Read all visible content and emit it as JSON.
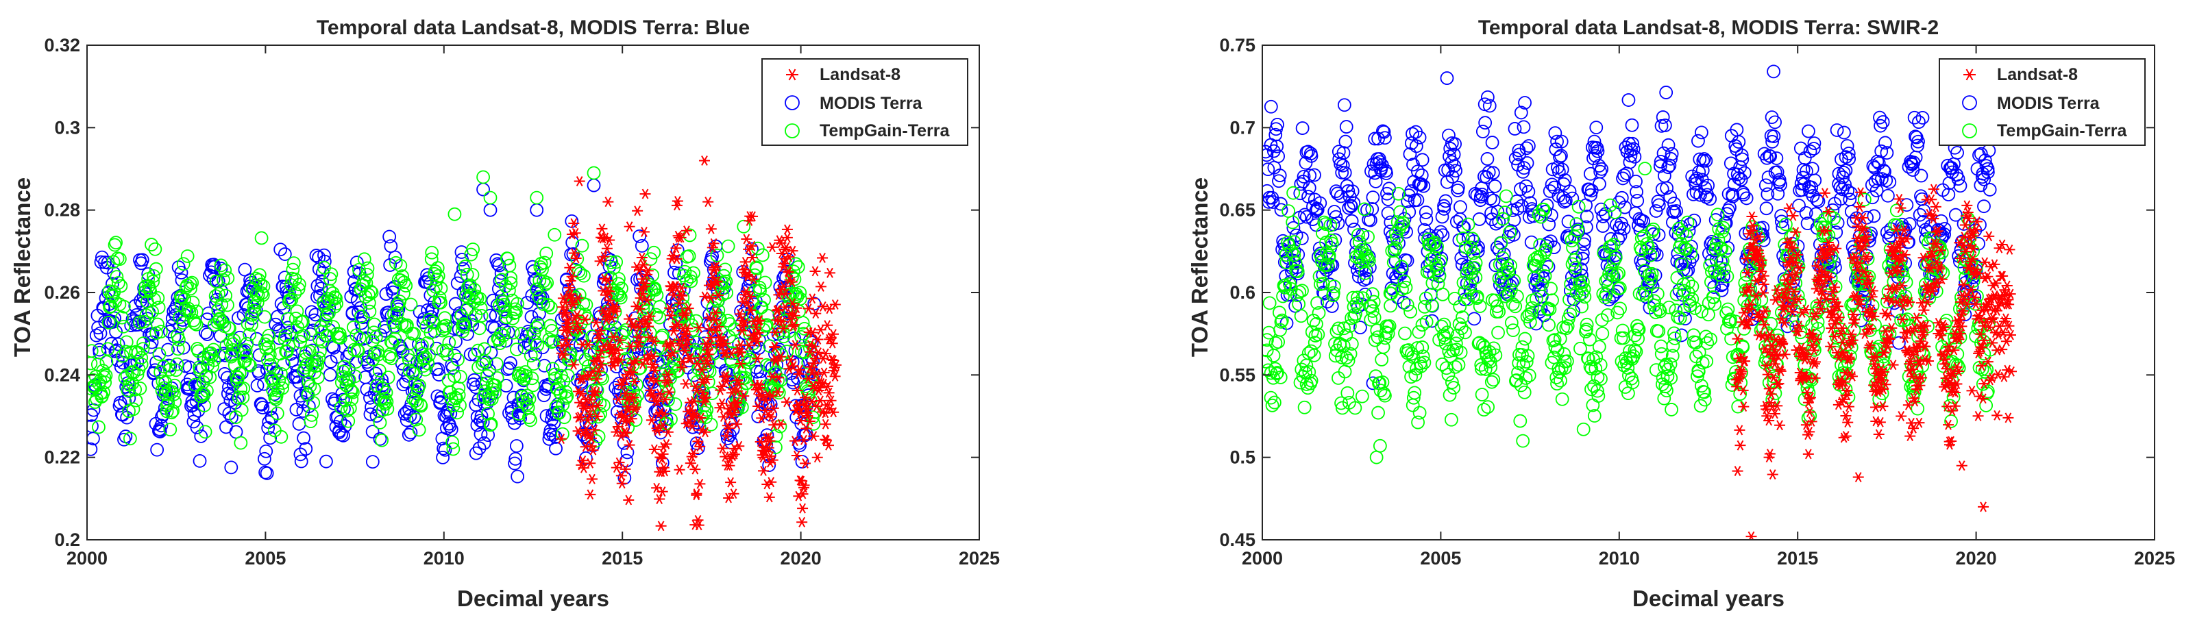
{
  "chart_data": [
    {
      "type": "scatter",
      "title": "Temporal data Landsat-8, MODIS Terra: Blue",
      "xlabel": "Decimal years",
      "ylabel": "TOA Reflectance",
      "xlim": [
        2000,
        2025
      ],
      "ylim": [
        0.2,
        0.32
      ],
      "xticks": [
        2000,
        2005,
        2010,
        2015,
        2020,
        2025
      ],
      "xtick_labels": [
        "2000",
        "2005",
        "2010",
        "2015",
        "2020",
        "2025"
      ],
      "yticks": [
        0.2,
        0.22,
        0.24,
        0.26,
        0.28,
        0.3,
        0.32
      ],
      "ytick_labels": [
        "0.2",
        "0.22",
        "0.24",
        "0.26",
        "0.28",
        "0.3",
        "0.32"
      ],
      "grid": false,
      "legend_position": "top-right",
      "series": [
        {
          "name": "Landsat-8",
          "marker": "asterisk",
          "color": "#ff0000",
          "x_range": [
            2013.3,
            2021.0
          ],
          "low": 0.224,
          "high": 0.262,
          "spread": 0.01,
          "outliers": [
            [
              2013.8,
              0.287
            ],
            [
              2014.1,
              0.211
            ],
            [
              2014.6,
              0.282
            ],
            [
              2015.2,
              0.276
            ],
            [
              2016.8,
              0.275
            ],
            [
              2017.3,
              0.292
            ],
            [
              2017.4,
              0.282
            ],
            [
              2018.0,
              0.218
            ],
            [
              2016.6,
              0.217
            ],
            [
              2019.2,
              0.271
            ]
          ]
        },
        {
          "name": "MODIS Terra",
          "marker": "circle",
          "color": "#0000ff",
          "x_range": [
            2000.1,
            2020.4
          ],
          "low": 0.228,
          "high": 0.262,
          "spread": 0.006,
          "outliers": [
            [
              2011.1,
              0.285
            ],
            [
              2011.3,
              0.28
            ],
            [
              2014.2,
              0.286
            ],
            [
              2012.6,
              0.28
            ],
            [
              2010.9,
              0.221
            ],
            [
              2006.7,
              0.219
            ]
          ]
        },
        {
          "name": "TempGain-Terra",
          "marker": "circle",
          "color": "#00ff00",
          "x_range": [
            2000.1,
            2020.4
          ],
          "low": 0.234,
          "high": 0.262,
          "spread": 0.005,
          "outliers": [
            [
              2011.1,
              0.288
            ],
            [
              2011.3,
              0.283
            ],
            [
              2014.2,
              0.289
            ],
            [
              2010.3,
              0.279
            ],
            [
              2012.6,
              0.283
            ],
            [
              2018.4,
              0.276
            ],
            [
              2013.1,
              0.274
            ]
          ]
        }
      ]
    },
    {
      "type": "scatter",
      "title": "Temporal data Landsat-8, MODIS Terra: SWIR-2",
      "xlabel": "Decimal years",
      "ylabel": "TOA Reflectance",
      "xlim": [
        2000,
        2025
      ],
      "ylim": [
        0.45,
        0.75
      ],
      "xticks": [
        2000,
        2005,
        2010,
        2015,
        2020,
        2025
      ],
      "xtick_labels": [
        "2000",
        "2005",
        "2010",
        "2015",
        "2020",
        "2025"
      ],
      "yticks": [
        0.45,
        0.5,
        0.55,
        0.6,
        0.65,
        0.7,
        0.75
      ],
      "ytick_labels": [
        "0.45",
        "0.5",
        "0.55",
        "0.6",
        "0.65",
        "0.7",
        "0.75"
      ],
      "grid": false,
      "legend_position": "top-right",
      "series": [
        {
          "name": "Landsat-8",
          "marker": "asterisk",
          "color": "#ff0000",
          "x_range": [
            2013.3,
            2021.0
          ],
          "low": 0.545,
          "high": 0.625,
          "spread": 0.02,
          "outliers": [
            [
              2013.7,
              0.452
            ],
            [
              2014.2,
              0.5
            ],
            [
              2015.3,
              0.502
            ],
            [
              2016.7,
              0.488
            ],
            [
              2019.6,
              0.495
            ],
            [
              2020.2,
              0.47
            ],
            [
              2017.9,
              0.525
            ]
          ]
        },
        {
          "name": "MODIS Terra",
          "marker": "circle",
          "color": "#0000ff",
          "x_range": [
            2000.1,
            2020.4
          ],
          "low": 0.605,
          "high": 0.685,
          "spread": 0.015,
          "outliers": [
            [
              2018.5,
              0.706
            ],
            [
              2003.1,
              0.545
            ],
            [
              2016.3,
              0.697
            ]
          ]
        },
        {
          "name": "TempGain-Terra",
          "marker": "circle",
          "color": "#00ff00",
          "x_range": [
            2000.1,
            2020.4
          ],
          "low": 0.548,
          "high": 0.625,
          "spread": 0.015,
          "outliers": [
            [
              2003.2,
              0.5
            ],
            [
              2003.3,
              0.507
            ],
            [
              2007.3,
              0.51
            ],
            [
              2009.0,
              0.517
            ],
            [
              2002.6,
              0.53
            ],
            [
              2002.8,
              0.537
            ]
          ]
        }
      ]
    }
  ]
}
